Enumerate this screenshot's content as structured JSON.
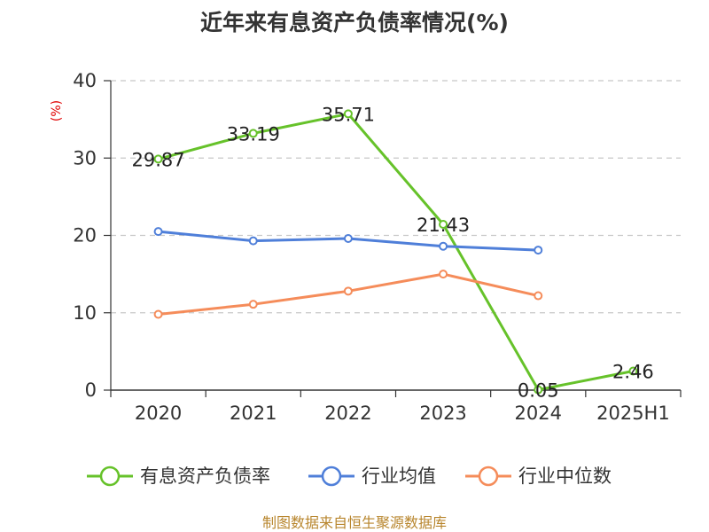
{
  "chart_data": {
    "type": "line",
    "title": "近年来有息资产负债率情况(%)",
    "ylabel": "(%)",
    "categories": [
      "2020",
      "2021",
      "2022",
      "2023",
      "2024",
      "2025H1"
    ],
    "ylim": [
      0,
      40
    ],
    "yticks": [
      0,
      10,
      20,
      30,
      40
    ],
    "grid": true,
    "legend_position": "bottom",
    "series": [
      {
        "name": "有息资产负债率",
        "color": "#66c22a",
        "show_labels": true,
        "values": [
          29.87,
          33.19,
          35.71,
          21.43,
          0.05,
          2.46
        ],
        "labels": [
          "29.87",
          "33.19",
          "35.71",
          "21.43",
          "0.05",
          "2.46"
        ]
      },
      {
        "name": "行业均值",
        "color": "#4f7fd9",
        "show_labels": false,
        "values": [
          20.5,
          19.3,
          19.6,
          18.6,
          18.1,
          null
        ]
      },
      {
        "name": "行业中位数",
        "color": "#f58c5a",
        "show_labels": false,
        "values": [
          9.8,
          11.1,
          12.8,
          15.0,
          12.2,
          null
        ]
      }
    ],
    "source": "制图数据来自恒生聚源数据库"
  }
}
